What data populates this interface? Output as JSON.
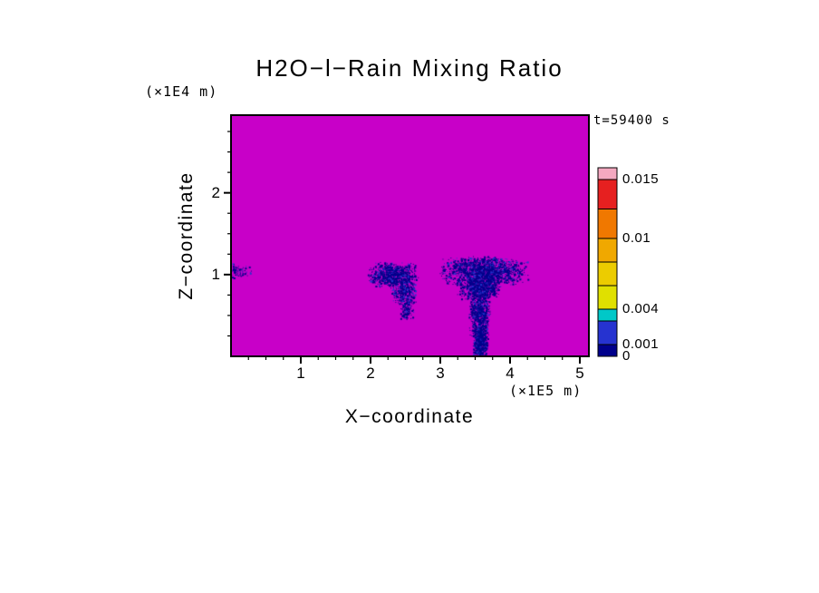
{
  "chart_data": {
    "type": "heatmap",
    "title": "H2O−l−Rain Mixing Ratio",
    "time_label": "t=59400 s",
    "x_axis": {
      "label": "X−coordinate",
      "unit": "(×1E5 m)",
      "tick_labels": [
        "1",
        "2",
        "3",
        "4",
        "5"
      ],
      "tick_values": [
        1,
        2,
        3,
        4,
        5
      ],
      "range": [
        0,
        5.13
      ],
      "minor_step": 0.25
    },
    "z_axis": {
      "label": "Z−coordinate",
      "unit": "(×1E4 m)",
      "tick_labels": [
        "1",
        "2"
      ],
      "tick_values": [
        1,
        2
      ],
      "range": [
        0,
        2.95
      ],
      "minor_step": 0.25
    },
    "field": {
      "quantity": "rain mixing ratio",
      "background_value": 0,
      "background_color": "#c800c8",
      "rain_color": "#00008b",
      "rain_color_alt": "#2233cc"
    },
    "colorbar": {
      "range": [
        0,
        0.016
      ],
      "tick_labels": [
        "0.015",
        "0.01",
        "0.004",
        "0.001",
        "0"
      ],
      "tick_values": [
        0.015,
        0.01,
        0.004,
        0.001,
        0
      ],
      "segments": [
        {
          "from": 0,
          "to": 0.001,
          "color": "#00008b"
        },
        {
          "from": 0.001,
          "to": 0.003,
          "color": "#2633d0"
        },
        {
          "from": 0.003,
          "to": 0.004,
          "color": "#00c8c8"
        },
        {
          "from": 0.004,
          "to": 0.006,
          "color": "#e0e000"
        },
        {
          "from": 0.006,
          "to": 0.008,
          "color": "#eccc00"
        },
        {
          "from": 0.008,
          "to": 0.01,
          "color": "#f0a800"
        },
        {
          "from": 0.01,
          "to": 0.0125,
          "color": "#f07800"
        },
        {
          "from": 0.0125,
          "to": 0.015,
          "color": "#e62020"
        },
        {
          "from": 0.015,
          "to": 0.016,
          "color": "#f4a8c0"
        }
      ]
    },
    "features": [
      {
        "name": "left-edge-wisp",
        "clusters": [
          {
            "cx": 0.07,
            "cz": 1.05,
            "rx": 0.18,
            "rz": 0.08,
            "n": 90
          }
        ]
      },
      {
        "name": "mid-rain-cell",
        "clusters": [
          {
            "cx": 2.32,
            "cz": 1.0,
            "rx": 0.3,
            "rz": 0.13,
            "n": 750
          },
          {
            "cx": 2.47,
            "cz": 0.8,
            "rx": 0.15,
            "rz": 0.15,
            "n": 350
          },
          {
            "cx": 2.52,
            "cz": 0.58,
            "rx": 0.08,
            "rz": 0.11,
            "n": 130
          }
        ]
      },
      {
        "name": "main-rain-cell-with-shaft",
        "clusters": [
          {
            "cx": 3.62,
            "cz": 1.05,
            "rx": 0.52,
            "rz": 0.15,
            "n": 1500
          },
          {
            "cx": 3.55,
            "cz": 0.85,
            "rx": 0.27,
            "rz": 0.13,
            "n": 650
          },
          {
            "cx": 3.56,
            "cz": 0.55,
            "rx": 0.13,
            "rz": 0.25,
            "n": 650
          },
          {
            "cx": 3.57,
            "cz": 0.18,
            "rx": 0.09,
            "rz": 0.2,
            "n": 600
          }
        ]
      }
    ]
  }
}
